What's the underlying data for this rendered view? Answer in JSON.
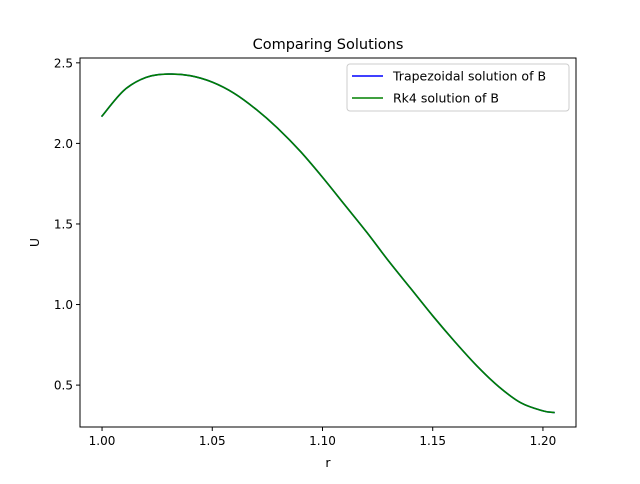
{
  "chart_data": {
    "type": "line",
    "title": "Comparing Solutions",
    "xlabel": "r",
    "ylabel": "U",
    "xlim": [
      0.99,
      1.215
    ],
    "ylim": [
      0.24,
      2.53
    ],
    "xticks": [
      1.0,
      1.05,
      1.1,
      1.15,
      1.2
    ],
    "xtick_labels": [
      "1.00",
      "1.05",
      "1.10",
      "1.15",
      "1.20"
    ],
    "yticks": [
      0.5,
      1.0,
      1.5,
      2.0,
      2.5
    ],
    "ytick_labels": [
      "0.5",
      "1.0",
      "1.5",
      "2.0",
      "2.5"
    ],
    "grid": false,
    "legend_position": "upper right",
    "series": [
      {
        "name": "Trapezoidal solution of B",
        "color": "#0000ff",
        "x": [
          1.0,
          1.01,
          1.02,
          1.03,
          1.04,
          1.05,
          1.06,
          1.07,
          1.08,
          1.09,
          1.1,
          1.11,
          1.12,
          1.13,
          1.14,
          1.15,
          1.16,
          1.17,
          1.18,
          1.19,
          1.2,
          1.205
        ],
        "y": [
          2.17,
          2.33,
          2.41,
          2.43,
          2.42,
          2.38,
          2.31,
          2.21,
          2.09,
          1.95,
          1.79,
          1.62,
          1.45,
          1.27,
          1.1,
          0.93,
          0.77,
          0.62,
          0.49,
          0.39,
          0.34,
          0.33
        ]
      },
      {
        "name": "Rk4 solution of B",
        "color": "#008000",
        "x": [
          1.0,
          1.01,
          1.02,
          1.03,
          1.04,
          1.05,
          1.06,
          1.07,
          1.08,
          1.09,
          1.1,
          1.11,
          1.12,
          1.13,
          1.14,
          1.15,
          1.16,
          1.17,
          1.18,
          1.19,
          1.2,
          1.205
        ],
        "y": [
          2.17,
          2.33,
          2.41,
          2.43,
          2.42,
          2.38,
          2.31,
          2.21,
          2.09,
          1.95,
          1.79,
          1.62,
          1.45,
          1.27,
          1.1,
          0.93,
          0.77,
          0.62,
          0.49,
          0.39,
          0.34,
          0.33
        ]
      }
    ]
  }
}
